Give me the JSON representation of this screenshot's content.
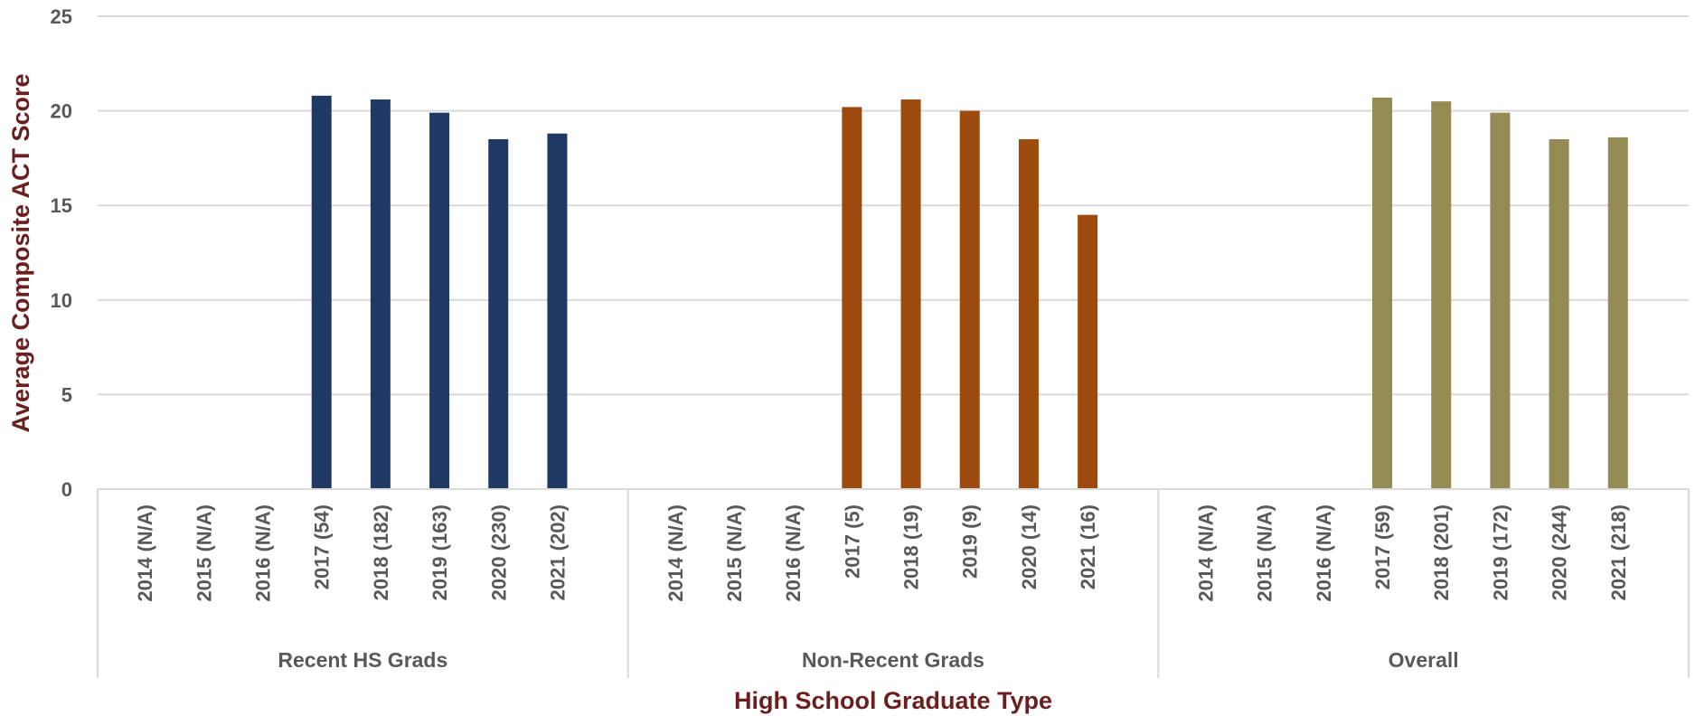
{
  "chart_data": {
    "type": "bar",
    "title": "",
    "xlabel": "High School Graduate Type",
    "ylabel": "Average Composite ACT Score",
    "ylim": [
      0,
      25
    ],
    "yticks": [
      "0",
      "5",
      "10",
      "15",
      "20",
      "25"
    ],
    "grid": true,
    "groups": [
      {
        "name": "Recent HS Grads",
        "color": "#1f3864",
        "categories": [
          "2014 (N/A)",
          "2015 (N/A)",
          "2016 (N/A)",
          "2017 (54)",
          "2018 (182)",
          "2019 (163)",
          "2020 (230)",
          "2021 (202)"
        ],
        "values": [
          null,
          null,
          null,
          20.8,
          20.6,
          19.9,
          18.5,
          18.8
        ]
      },
      {
        "name": "Non-Recent Grads",
        "color": "#9c4a0e",
        "categories": [
          "2014 (N/A)",
          "2015 (N/A)",
          "2016 (N/A)",
          "2017 (5)",
          "2018 (19)",
          "2019 (9)",
          "2020 (14)",
          "2021 (16)"
        ],
        "values": [
          null,
          null,
          null,
          20.2,
          20.6,
          20.0,
          18.5,
          14.5
        ]
      },
      {
        "name": "Overall",
        "color": "#948a54",
        "categories": [
          "2014 (N/A)",
          "2015 (N/A)",
          "2016 (N/A)",
          "2017 (59)",
          "2018 (201)",
          "2019 (172)",
          "2020 (244)",
          "2021 (218)"
        ],
        "values": [
          null,
          null,
          null,
          20.7,
          20.5,
          19.9,
          18.5,
          18.6
        ]
      }
    ]
  }
}
